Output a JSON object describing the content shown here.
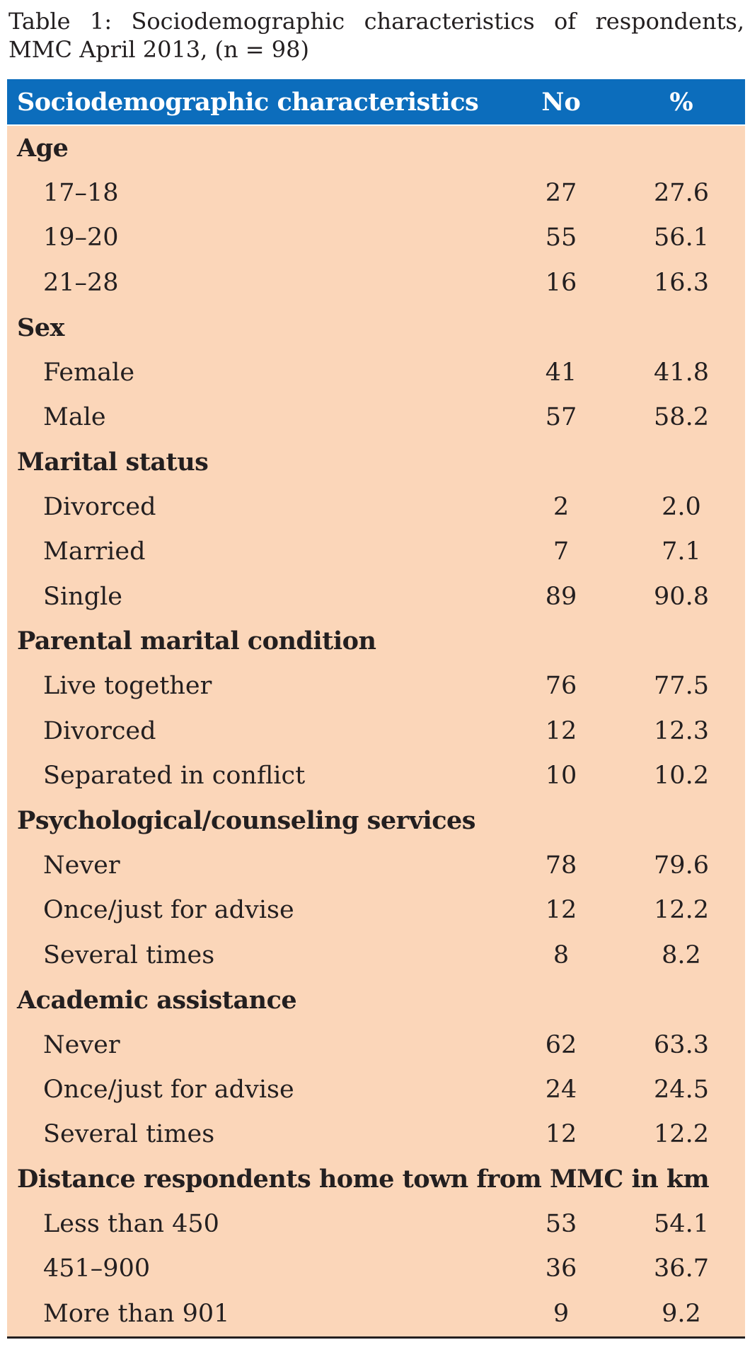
{
  "caption": "Table 1: Sociodemographic characteristics of respondents, MMC April 2013, (n = 98)",
  "table": {
    "columns": [
      "Sociodemographic characteristics",
      "No",
      "%"
    ],
    "groups": [
      {
        "title": "Age",
        "rows": [
          {
            "label": "17–18",
            "no": "27",
            "pct": "27.6"
          },
          {
            "label": "19–20",
            "no": "55",
            "pct": "56.1"
          },
          {
            "label": "21–28",
            "no": "16",
            "pct": "16.3"
          }
        ]
      },
      {
        "title": "Sex",
        "rows": [
          {
            "label": "Female",
            "no": "41",
            "pct": "41.8"
          },
          {
            "label": "Male",
            "no": "57",
            "pct": "58.2"
          }
        ]
      },
      {
        "title": "Marital status",
        "rows": [
          {
            "label": "Divorced",
            "no": "2",
            "pct": "2.0"
          },
          {
            "label": "Married",
            "no": "7",
            "pct": "7.1"
          },
          {
            "label": "Single",
            "no": "89",
            "pct": "90.8"
          }
        ]
      },
      {
        "title": "Parental marital condition",
        "rows": [
          {
            "label": "Live together",
            "no": "76",
            "pct": "77.5"
          },
          {
            "label": "Divorced",
            "no": "12",
            "pct": "12.3"
          },
          {
            "label": "Separated in conflict",
            "no": "10",
            "pct": "10.2"
          }
        ]
      },
      {
        "title": "Psychological/counseling services",
        "rows": [
          {
            "label": "Never",
            "no": "78",
            "pct": "79.6"
          },
          {
            "label": "Once/just for advise",
            "no": "12",
            "pct": "12.2"
          },
          {
            "label": "Several times",
            "no": "8",
            "pct": "8.2"
          }
        ]
      },
      {
        "title": "Academic assistance",
        "rows": [
          {
            "label": "Never",
            "no": "62",
            "pct": "63.3"
          },
          {
            "label": "Once/just for advise",
            "no": "24",
            "pct": "24.5"
          },
          {
            "label": "Several times",
            "no": "12",
            "pct": "12.2"
          }
        ]
      },
      {
        "title": "Distance respondents home town from MMC in km",
        "rows": [
          {
            "label": "Less than 450",
            "no": "53",
            "pct": "54.1"
          },
          {
            "label": "451–900",
            "no": "36",
            "pct": "36.7"
          },
          {
            "label": "More than 901",
            "no": "9",
            "pct": "9.2"
          }
        ]
      }
    ]
  },
  "colors": {
    "header_bg": "#0c6dbc",
    "header_text": "#ffffff",
    "body_bg": "#fbd6b9",
    "text": "#231f20"
  }
}
